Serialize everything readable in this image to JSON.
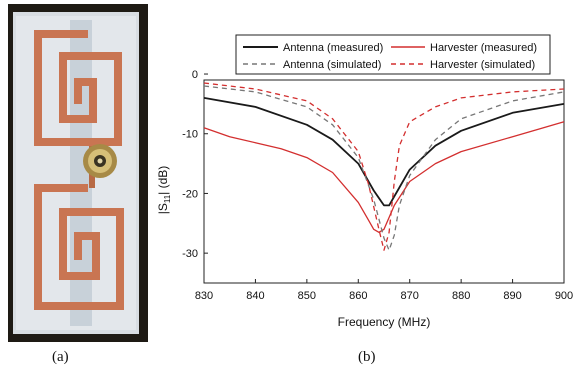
{
  "captions": {
    "a": "(a)",
    "b": "(b)"
  },
  "chart_data": {
    "type": "line",
    "xlabel": "Frequency (MHz)",
    "ylabel_main": "|S",
    "ylabel_sub": "11",
    "ylabel_rest": "| (dB)",
    "xlim": [
      830,
      900
    ],
    "ylim": [
      -35,
      -1
    ],
    "xticks": [
      830,
      840,
      850,
      860,
      870,
      880,
      890,
      900
    ],
    "yticks": [
      0,
      -10,
      -20,
      -30
    ],
    "xtick_labels": [
      "830",
      "840",
      "850",
      "860",
      "870",
      "880",
      "890",
      "900"
    ],
    "ytick_labels": [
      "0",
      "-10",
      "-20",
      "-30"
    ],
    "legend_position": "top",
    "series": [
      {
        "name": "Antenna (measured)",
        "color": "#1a1a1a",
        "dash": "solid",
        "x": [
          830,
          840,
          850,
          855,
          860,
          863,
          865,
          866,
          868,
          870,
          875,
          880,
          890,
          900
        ],
        "y": [
          -4,
          -5.5,
          -8.5,
          -11,
          -15,
          -19.5,
          -22,
          -22,
          -19,
          -16,
          -12,
          -9.5,
          -6.5,
          -5
        ]
      },
      {
        "name": "Harvester (measured)",
        "color": "#d32f2f",
        "dash": "solid",
        "x": [
          830,
          835,
          840,
          845,
          850,
          855,
          860,
          862,
          863,
          864,
          865,
          867,
          870,
          875,
          880,
          890,
          900
        ],
        "y": [
          -9,
          -10.5,
          -11.5,
          -12.5,
          -14,
          -16.5,
          -21.5,
          -24.5,
          -26,
          -26.5,
          -26,
          -22,
          -18,
          -15,
          -13,
          -10.5,
          -8
        ]
      },
      {
        "name": "Antenna (simulated)",
        "color": "#777777",
        "dash": "dashed",
        "x": [
          830,
          840,
          850,
          855,
          860,
          863,
          865,
          866,
          867,
          868,
          870,
          875,
          880,
          890,
          900
        ],
        "y": [
          -2,
          -3,
          -5.5,
          -8.5,
          -14,
          -21,
          -27.5,
          -29.5,
          -27,
          -22,
          -17,
          -11,
          -7.5,
          -4.5,
          -3
        ]
      },
      {
        "name": "Harvester (simulated)",
        "color": "#d32f2f",
        "dash": "dashed",
        "x": [
          830,
          840,
          850,
          855,
          860,
          862,
          864,
          865,
          866,
          867,
          868,
          870,
          875,
          880,
          890,
          900
        ],
        "y": [
          -1.5,
          -2.5,
          -4.5,
          -7.5,
          -13,
          -18.5,
          -26,
          -29.5,
          -26.5,
          -18,
          -12,
          -8,
          -5.5,
          -4,
          -3,
          -2.5
        ]
      }
    ]
  }
}
